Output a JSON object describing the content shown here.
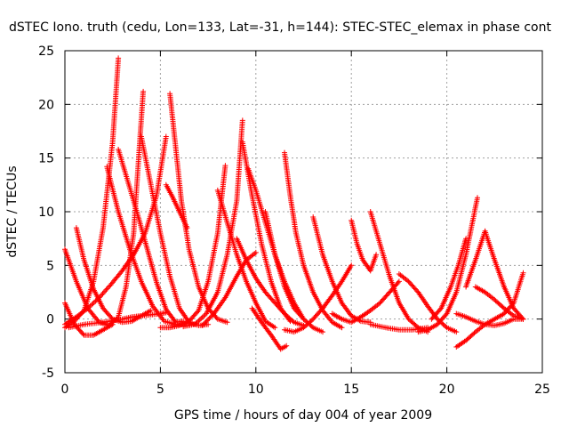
{
  "chart_data": {
    "type": "scatter",
    "title": "dSTEC Iono. truth (cedu, Lon=133, Lat=-31, h=144): STEC-STEC_elemax in phase cont",
    "xlabel": "GPS time / hours of day 004 of year 2009",
    "ylabel": "dSTEC  / TECUs",
    "xlim": [
      0,
      25
    ],
    "ylim": [
      -5,
      25
    ],
    "x_ticks": [
      0,
      5,
      10,
      15,
      20,
      25
    ],
    "y_ticks": [
      -5,
      0,
      5,
      10,
      15,
      20,
      25
    ],
    "x_tick_labels": [
      "0",
      "5",
      "10",
      "15",
      "20",
      "25"
    ],
    "y_tick_labels": [
      "-5",
      "0",
      "5",
      "10",
      "15",
      "20",
      "25"
    ],
    "grid": true,
    "marker": "+",
    "color": "#ff0000",
    "series": [
      {
        "x": [
          0.0,
          0.5,
          1.0,
          1.5,
          2.0,
          2.5,
          2.8
        ],
        "y": [
          -0.8,
          -0.2,
          0.8,
          3.5,
          8.5,
          16.5,
          24.3
        ]
      },
      {
        "x": [
          2.8,
          3.3,
          3.8,
          4.3,
          4.8,
          5.3,
          5.8,
          6.2
        ],
        "y": [
          15.8,
          12.8,
          9.8,
          6.6,
          3.4,
          0.9,
          -0.3,
          -0.2
        ]
      },
      {
        "x": [
          0.0,
          0.6,
          1.2,
          1.8,
          2.3,
          2.8,
          3.2,
          3.6,
          3.9,
          4.1
        ],
        "y": [
          6.5,
          3.5,
          1.0,
          -0.3,
          -0.6,
          0.2,
          3.0,
          8.0,
          16.0,
          21.2
        ]
      },
      {
        "x": [
          4.0,
          4.5,
          5.0,
          5.5,
          6.0,
          6.5,
          7.0,
          7.5
        ],
        "y": [
          17.0,
          12.5,
          8.0,
          4.0,
          1.0,
          -0.3,
          -0.6,
          -0.5
        ]
      },
      {
        "x": [
          2.2,
          2.8,
          3.4,
          4.0,
          4.6,
          5.2,
          5.8,
          6.2
        ],
        "y": [
          14.2,
          10.0,
          6.5,
          3.5,
          1.2,
          -0.2,
          -0.5,
          -0.5
        ]
      },
      {
        "x": [
          0.0,
          0.6,
          1.2,
          1.8,
          2.4,
          3.0,
          3.6,
          4.2,
          4.8,
          5.3
        ],
        "y": [
          -0.5,
          0.2,
          1.0,
          2.0,
          3.2,
          4.5,
          6.0,
          8.0,
          11.5,
          17.0
        ]
      },
      {
        "x": [
          0.6,
          1.0,
          1.5,
          2.0,
          2.5,
          3.0,
          3.5,
          4.0,
          4.5
        ],
        "y": [
          8.5,
          5.5,
          2.8,
          1.0,
          0.0,
          -0.3,
          -0.2,
          0.3,
          0.8
        ]
      },
      {
        "x": [
          0.0,
          0.5,
          1.0,
          1.5,
          2.0,
          2.5
        ],
        "y": [
          1.5,
          -0.5,
          -1.5,
          -1.5,
          -1.0,
          -0.5
        ]
      },
      {
        "x": [
          0.2,
          1.0,
          2.0,
          3.0,
          3.5,
          4.0,
          4.5,
          5.0,
          5.3
        ],
        "y": [
          -0.8,
          -0.5,
          -0.3,
          0.0,
          0.2,
          0.3,
          0.4,
          0.5,
          0.6
        ]
      },
      {
        "x": [
          5.5,
          5.8,
          6.1,
          6.5,
          7.0,
          7.5,
          8.0,
          8.5
        ],
        "y": [
          21.0,
          16.0,
          11.0,
          6.5,
          3.0,
          1.0,
          0.0,
          -0.3
        ]
      },
      {
        "x": [
          5.3,
          5.6,
          6.0,
          6.4
        ],
        "y": [
          12.5,
          11.5,
          10.0,
          8.5
        ]
      },
      {
        "x": [
          5.0,
          5.5,
          6.0,
          6.5,
          7.0,
          7.5,
          8.0,
          8.4
        ],
        "y": [
          -0.8,
          -0.8,
          -0.6,
          -0.2,
          0.8,
          3.5,
          8.0,
          14.3
        ]
      },
      {
        "x": [
          8.0,
          8.5,
          9.0,
          9.5,
          10.0,
          10.5,
          11.0
        ],
        "y": [
          12.0,
          9.0,
          6.0,
          3.5,
          1.5,
          -0.2,
          -0.8
        ]
      },
      {
        "x": [
          6.2,
          6.8,
          7.4,
          8.0,
          8.5,
          9.0,
          9.3
        ],
        "y": [
          -0.7,
          -0.5,
          0.5,
          2.5,
          6.0,
          11.0,
          18.5
        ]
      },
      {
        "x": [
          9.3,
          9.8,
          10.3,
          10.8,
          11.3,
          11.8
        ],
        "y": [
          16.5,
          11.5,
          7.0,
          3.5,
          1.0,
          -0.2
        ]
      },
      {
        "x": [
          7.2,
          7.8,
          8.4,
          9.0,
          9.5,
          10.0
        ],
        "y": [
          -0.6,
          0.5,
          2.0,
          4.0,
          5.5,
          6.2
        ]
      },
      {
        "x": [
          9.0,
          9.5,
          10.0,
          10.5,
          11.0,
          11.5,
          12.0,
          12.5
        ],
        "y": [
          7.5,
          5.5,
          3.8,
          2.5,
          1.5,
          0.5,
          -0.3,
          -0.6
        ]
      },
      {
        "x": [
          9.6,
          10.0,
          10.5,
          11.0,
          11.5,
          12.0,
          12.5
        ],
        "y": [
          14.0,
          12.0,
          9.0,
          6.0,
          3.5,
          1.5,
          0.0
        ]
      },
      {
        "x": [
          9.8,
          10.3,
          10.8,
          11.3,
          11.6
        ],
        "y": [
          1.0,
          -0.3,
          -1.5,
          -2.8,
          -2.5
        ]
      },
      {
        "x": [
          11.5,
          11.8,
          12.1,
          12.5,
          13.0,
          13.5,
          14.0,
          14.5
        ],
        "y": [
          15.5,
          11.5,
          8.0,
          5.0,
          2.5,
          0.8,
          -0.3,
          -0.8
        ]
      },
      {
        "x": [
          10.5,
          11.0,
          11.5,
          12.0,
          12.5,
          13.0,
          13.5
        ],
        "y": [
          10.0,
          6.0,
          3.0,
          1.0,
          0.0,
          -0.8,
          -1.2
        ]
      },
      {
        "x": [
          11.5,
          12.0,
          12.5,
          13.0,
          13.5,
          14.0,
          14.5,
          15.0
        ],
        "y": [
          -1.0,
          -1.2,
          -0.8,
          0.0,
          1.0,
          2.2,
          3.5,
          5.0
        ]
      },
      {
        "x": [
          13.0,
          13.5,
          14.0,
          14.5,
          15.0,
          15.5,
          16.0
        ],
        "y": [
          9.5,
          6.0,
          3.5,
          1.5,
          0.3,
          -0.2,
          -0.3
        ]
      },
      {
        "x": [
          15.0,
          15.3,
          15.6,
          16.0,
          16.3
        ],
        "y": [
          9.2,
          7.0,
          5.5,
          4.5,
          6.0
        ]
      },
      {
        "x": [
          14.0,
          14.5,
          15.0,
          15.5,
          16.0,
          16.5,
          17.0,
          17.5
        ],
        "y": [
          0.5,
          0.0,
          -0.3,
          0.2,
          0.8,
          1.5,
          2.5,
          3.5
        ]
      },
      {
        "x": [
          16.0,
          16.5,
          17.0,
          17.5,
          18.0,
          18.5,
          19.0
        ],
        "y": [
          10.0,
          7.0,
          4.0,
          1.5,
          0.0,
          -0.8,
          -1.2
        ]
      },
      {
        "x": [
          16.0,
          16.8,
          17.5,
          18.2,
          19.0
        ],
        "y": [
          -0.5,
          -0.8,
          -1.0,
          -1.0,
          -0.8
        ]
      },
      {
        "x": [
          17.5,
          18.0,
          18.5,
          19.0,
          19.5,
          20.0,
          20.5
        ],
        "y": [
          4.2,
          3.5,
          2.5,
          1.2,
          0.0,
          -0.8,
          -1.2
        ]
      },
      {
        "x": [
          18.5,
          19.0,
          19.5,
          20.0,
          20.5,
          21.0,
          21.6
        ],
        "y": [
          -1.2,
          -1.0,
          -0.5,
          0.5,
          2.5,
          6.0,
          11.3
        ]
      },
      {
        "x": [
          19.2,
          19.7,
          20.2,
          20.6,
          21.0
        ],
        "y": [
          0.0,
          1.0,
          3.0,
          5.0,
          7.5
        ]
      },
      {
        "x": [
          20.5,
          21.0,
          21.5,
          22.0,
          22.5,
          23.0,
          23.5,
          24.0
        ],
        "y": [
          -2.6,
          -2.0,
          -1.2,
          -0.5,
          0.0,
          0.5,
          1.5,
          4.3
        ]
      },
      {
        "x": [
          21.0,
          21.5,
          22.0,
          22.5,
          23.0,
          23.5,
          24.0
        ],
        "y": [
          3.0,
          5.5,
          8.2,
          5.5,
          3.0,
          1.0,
          0.0
        ]
      },
      {
        "x": [
          21.5,
          22.0,
          22.5,
          23.0,
          23.5,
          24.0
        ],
        "y": [
          3.0,
          2.5,
          1.8,
          1.0,
          0.3,
          0.0
        ]
      },
      {
        "x": [
          20.5,
          21.0,
          21.5,
          22.0,
          22.5,
          23.0,
          23.5,
          24.0
        ],
        "y": [
          0.5,
          0.2,
          -0.2,
          -0.5,
          -0.6,
          -0.4,
          0.0,
          0.0
        ]
      }
    ]
  }
}
